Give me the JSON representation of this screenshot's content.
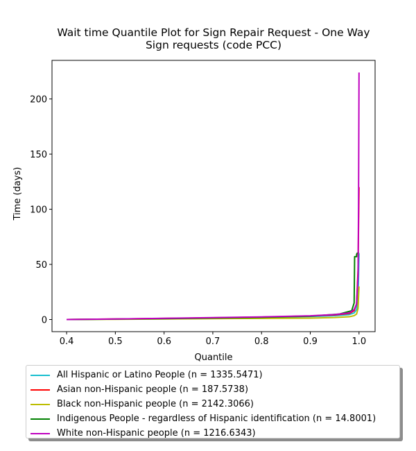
{
  "chart_data": {
    "type": "line",
    "title": "Wait time Quantile Plot for Sign Repair Request - One Way Sign  requests (code PCC)",
    "title_lines": [
      "Wait time Quantile Plot for Sign Repair Request - One Way",
      "Sign  requests (code PCC)"
    ],
    "xlabel": "Quantile",
    "ylabel": "Time (days)",
    "xlim": [
      0.37,
      1.033
    ],
    "ylim": [
      -11,
      235
    ],
    "xticks": [
      0.4,
      0.5,
      0.6,
      0.7,
      0.8,
      0.9,
      1.0
    ],
    "xtick_labels": [
      "0.4",
      "0.5",
      "0.6",
      "0.7",
      "0.8",
      "0.9",
      "1.0"
    ],
    "yticks": [
      0,
      50,
      100,
      150,
      200
    ],
    "ytick_labels": [
      "0",
      "50",
      "100",
      "150",
      "200"
    ],
    "grid": false,
    "legend_position": "below",
    "series": [
      {
        "name": "All Hispanic or Latino People (n = 1335.5471)",
        "color": "#17becf",
        "x": [
          0.4,
          0.5,
          0.6,
          0.7,
          0.8,
          0.9,
          0.95,
          0.98,
          0.99,
          0.995,
          0.998,
          1.0
        ],
        "y": [
          0,
          0.4,
          0.9,
          1.4,
          2.0,
          2.8,
          3.5,
          4.5,
          6,
          9,
          18,
          60
        ]
      },
      {
        "name": "Asian non-Hispanic people (n = 187.5738)",
        "color": "#ff0000",
        "x": [
          0.4,
          0.5,
          0.6,
          0.7,
          0.8,
          0.9,
          0.95,
          0.98,
          0.99,
          0.995,
          0.998,
          1.0
        ],
        "y": [
          0,
          0.5,
          1.0,
          1.6,
          2.2,
          3.2,
          4.2,
          5.5,
          8,
          14,
          45,
          120
        ]
      },
      {
        "name": "Black non-Hispanic people (n = 2142.3066)",
        "color": "#bcbd00",
        "x": [
          0.4,
          0.5,
          0.6,
          0.7,
          0.8,
          0.9,
          0.95,
          0.98,
          0.99,
          0.995,
          0.998,
          1.0
        ],
        "y": [
          0,
          0.2,
          0.5,
          0.8,
          1.0,
          1.3,
          1.8,
          2.5,
          3.5,
          5,
          10,
          30
        ]
      },
      {
        "name": "Indigenous People - regardless of Hispanic identification (n = 14.8001)",
        "color": "#008000",
        "x": [
          0.4,
          0.6,
          0.8,
          0.9,
          0.96,
          0.985,
          0.99,
          0.991,
          0.993,
          0.995,
          0.995,
          0.996,
          1.0
        ],
        "y": [
          0,
          0.8,
          2.0,
          3.0,
          5.0,
          8.0,
          15,
          57,
          57,
          57,
          59,
          60,
          61
        ]
      },
      {
        "name": "White non-Hispanic people (n = 1216.6343)",
        "color": "#bf00bf",
        "x": [
          0.4,
          0.5,
          0.6,
          0.7,
          0.8,
          0.9,
          0.95,
          0.98,
          0.99,
          0.995,
          0.998,
          0.999,
          1.0
        ],
        "y": [
          0,
          0.5,
          1.1,
          1.7,
          2.4,
          3.4,
          4.5,
          6.0,
          9,
          14,
          40,
          100,
          224
        ]
      }
    ]
  }
}
